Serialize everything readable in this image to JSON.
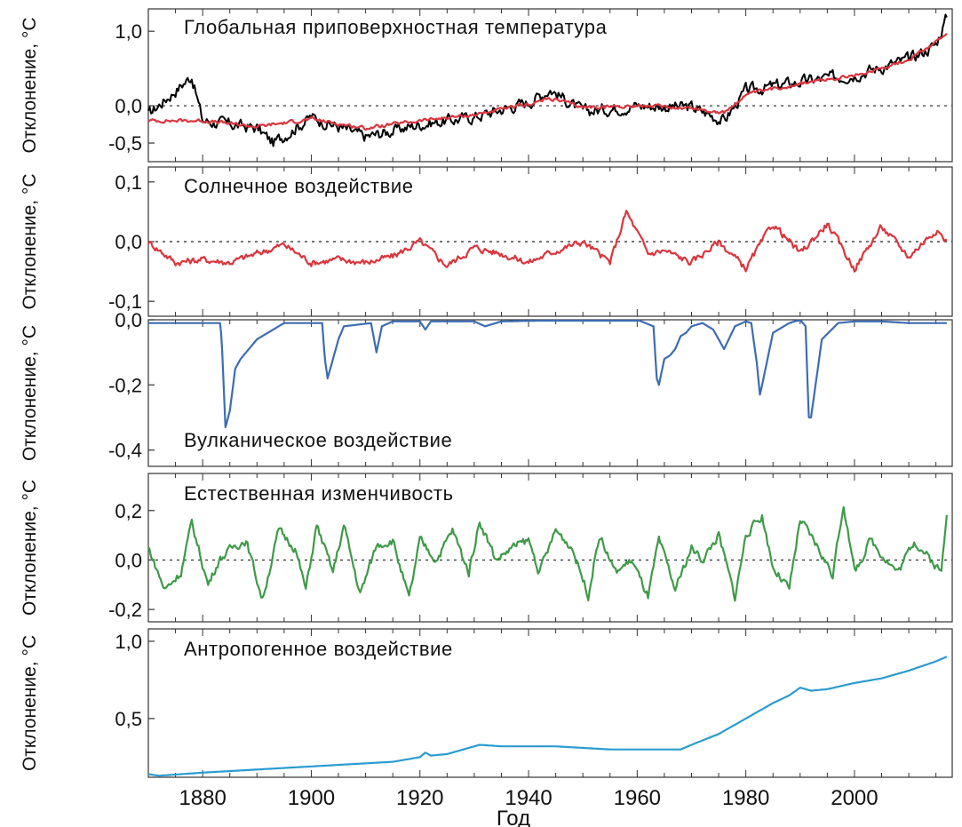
{
  "xlabel": "Год",
  "x_range": [
    1870,
    2018
  ],
  "x_ticks": [
    1880,
    1900,
    1920,
    1940,
    1960,
    1980,
    2000
  ],
  "x_tick_labels": [
    "1880",
    "1900",
    "1920",
    "1940",
    "1960",
    "1980",
    "2000"
  ],
  "chart_data": [
    {
      "type": "line",
      "title": "Глобальная приповерхностная температура",
      "ylabel": "Отклонение, °C",
      "ylim": [
        -0.75,
        1.3
      ],
      "yticks": [
        1.0,
        0.0,
        -0.5
      ],
      "ytick_labels": [
        "1,0",
        "0,0",
        "-0,5"
      ],
      "zero_line": true,
      "series": [
        {
          "color": "#000000",
          "noise": 0.14,
          "x": [
            1870,
            1878,
            1880,
            1890,
            1893,
            1900,
            1910,
            1920,
            1930,
            1940,
            1944,
            1950,
            1960,
            1970,
            1976,
            1980,
            1990,
            2000,
            2010,
            2015,
            2017
          ],
          "values": [
            -0.12,
            0.4,
            -0.2,
            -0.3,
            -0.5,
            -0.15,
            -0.42,
            -0.25,
            -0.15,
            0.05,
            0.22,
            -0.08,
            0.0,
            -0.02,
            -0.2,
            0.2,
            0.32,
            0.42,
            0.62,
            0.82,
            1.2
          ]
        },
        {
          "color": "#d9363e",
          "noise": 0.04,
          "x": [
            1870,
            1880,
            1890,
            1900,
            1910,
            1920,
            1930,
            1940,
            1944,
            1950,
            1960,
            1970,
            1976,
            1980,
            1990,
            2000,
            2010,
            2017
          ],
          "values": [
            -0.2,
            -0.2,
            -0.28,
            -0.18,
            -0.3,
            -0.2,
            -0.12,
            0.02,
            0.1,
            -0.02,
            0.0,
            -0.03,
            -0.1,
            0.15,
            0.3,
            0.4,
            0.62,
            0.95
          ]
        }
      ]
    },
    {
      "type": "line",
      "title": "Солнечное воздействие",
      "ylabel": "Отклонение, °C",
      "ylim": [
        -0.125,
        0.125
      ],
      "yticks": [
        0.1,
        0.0,
        -0.1
      ],
      "ytick_labels": [
        "0,1",
        "0,0",
        "-0,1"
      ],
      "zero_line": true,
      "series": [
        {
          "color": "#d9363e",
          "noise": 0.01,
          "x": [
            1870,
            1875,
            1880,
            1885,
            1890,
            1895,
            1900,
            1905,
            1910,
            1915,
            1920,
            1925,
            1930,
            1935,
            1940,
            1945,
            1950,
            1955,
            1958,
            1962,
            1965,
            1970,
            1975,
            1980,
            1985,
            1990,
            1995,
            2000,
            2005,
            2010,
            2015,
            2017
          ],
          "values": [
            0.0,
            -0.035,
            -0.03,
            -0.035,
            -0.02,
            -0.005,
            -0.035,
            -0.03,
            -0.035,
            -0.025,
            0.0,
            -0.04,
            -0.01,
            -0.02,
            -0.035,
            -0.015,
            0.0,
            -0.035,
            0.05,
            -0.02,
            -0.015,
            -0.035,
            0.0,
            -0.045,
            0.03,
            -0.02,
            0.03,
            -0.045,
            0.025,
            -0.025,
            0.02,
            0.0
          ]
        }
      ]
    },
    {
      "type": "line",
      "title": "Вулканическое воздействие",
      "ylabel": "Отклонение, °C",
      "ylim": [
        -0.45,
        0.0
      ],
      "yticks": [
        0.0,
        -0.2,
        -0.4
      ],
      "ytick_labels": [
        "0,0",
        "-0,2",
        "-0,4"
      ],
      "zero_line": false,
      "series": [
        {
          "color": "#3d6cb3",
          "noise": 0.0,
          "x": [
            1870,
            1883.3,
            1883.6,
            1884.2,
            1885,
            1886,
            1887,
            1888,
            1889,
            1890,
            1895,
            1902,
            1902.5,
            1903,
            1905,
            1906,
            1911,
            1912,
            1913,
            1915,
            1920,
            1921,
            1922,
            1925,
            1930,
            1932,
            1935,
            1950,
            1960,
            1963,
            1963.6,
            1964,
            1965,
            1966,
            1967,
            1968,
            1969,
            1970,
            1972,
            1974,
            1975,
            1976,
            1978,
            1980,
            1981,
            1982,
            1982.6,
            1983,
            1985,
            1988,
            1990,
            1991,
            1991.6,
            1992,
            1993,
            1994,
            1997,
            2000,
            2005,
            2010,
            2017
          ],
          "values": [
            -0.01,
            -0.01,
            -0.1,
            -0.33,
            -0.28,
            -0.15,
            -0.12,
            -0.1,
            -0.08,
            -0.06,
            -0.01,
            -0.01,
            -0.12,
            -0.18,
            -0.06,
            -0.02,
            -0.01,
            -0.1,
            -0.02,
            -0.005,
            -0.005,
            -0.03,
            -0.005,
            -0.005,
            -0.005,
            -0.02,
            -0.005,
            0.0,
            0.0,
            -0.02,
            -0.18,
            -0.2,
            -0.12,
            -0.11,
            -0.09,
            -0.05,
            -0.04,
            -0.02,
            -0.01,
            -0.03,
            -0.06,
            -0.09,
            -0.02,
            -0.005,
            -0.01,
            -0.13,
            -0.23,
            -0.2,
            -0.04,
            -0.01,
            0.0,
            -0.02,
            -0.3,
            -0.3,
            -0.18,
            -0.06,
            -0.01,
            -0.005,
            -0.005,
            -0.01,
            -0.01
          ]
        }
      ]
    },
    {
      "type": "line",
      "title": "Естественная изменчивость",
      "ylabel": "Отклонение, °C",
      "ylim": [
        -0.25,
        0.35
      ],
      "yticks": [
        0.2,
        0.0,
        -0.2
      ],
      "ytick_labels": [
        "0,2",
        "0,0",
        "-0,2"
      ],
      "zero_line": true,
      "series": [
        {
          "color": "#3e9a47",
          "noise": 0.03,
          "x": [
            1870,
            1873,
            1876,
            1878,
            1881,
            1883,
            1886,
            1888,
            1891,
            1894,
            1897,
            1899,
            1901,
            1904,
            1906,
            1909,
            1912,
            1915,
            1918,
            1920,
            1923,
            1926,
            1929,
            1931,
            1934,
            1937,
            1940,
            1942,
            1945,
            1948,
            1951,
            1953,
            1956,
            1959,
            1962,
            1964,
            1967,
            1970,
            1972,
            1975,
            1978,
            1980,
            1983,
            1985,
            1988,
            1990,
            1993,
            1996,
            1998,
            2000,
            2003,
            2006,
            2008,
            2011,
            2014,
            2016,
            2017
          ],
          "values": [
            0.05,
            -0.12,
            -0.05,
            0.15,
            -0.1,
            0.0,
            0.06,
            0.08,
            -0.16,
            0.12,
            0.05,
            -0.12,
            0.14,
            -0.05,
            0.14,
            -0.14,
            0.06,
            0.08,
            -0.16,
            0.08,
            0.0,
            0.12,
            -0.05,
            0.16,
            0.0,
            0.05,
            0.08,
            -0.05,
            0.12,
            0.05,
            -0.14,
            0.1,
            -0.05,
            0.0,
            -0.15,
            0.08,
            -0.12,
            0.05,
            0.0,
            0.1,
            -0.15,
            0.1,
            0.18,
            -0.03,
            -0.12,
            0.16,
            0.06,
            -0.06,
            0.23,
            -0.05,
            0.08,
            0.0,
            -0.05,
            0.08,
            0.0,
            -0.05,
            0.2
          ]
        }
      ]
    },
    {
      "type": "line",
      "title": "Антропогенное воздействие",
      "ylabel": "Отклонение, °C",
      "ylim": [
        0.12,
        1.08
      ],
      "yticks": [
        1.0,
        0.5
      ],
      "ytick_labels": [
        "1,0",
        "0,5"
      ],
      "zero_line": false,
      "series": [
        {
          "color": "#2a9ccf",
          "noise": 0.0,
          "x": [
            1870,
            1872,
            1880,
            1890,
            1900,
            1910,
            1915,
            1920,
            1921,
            1922,
            1925,
            1930,
            1931,
            1935,
            1940,
            1945,
            1950,
            1955,
            1960,
            1965,
            1968,
            1970,
            1975,
            1980,
            1985,
            1988,
            1990,
            1992,
            1995,
            2000,
            2005,
            2010,
            2015,
            2017
          ],
          "values": [
            0.14,
            0.13,
            0.15,
            0.17,
            0.19,
            0.21,
            0.22,
            0.25,
            0.28,
            0.26,
            0.27,
            0.32,
            0.33,
            0.32,
            0.32,
            0.32,
            0.31,
            0.3,
            0.3,
            0.3,
            0.3,
            0.33,
            0.4,
            0.5,
            0.6,
            0.65,
            0.7,
            0.68,
            0.69,
            0.73,
            0.76,
            0.81,
            0.87,
            0.9
          ]
        }
      ]
    }
  ]
}
